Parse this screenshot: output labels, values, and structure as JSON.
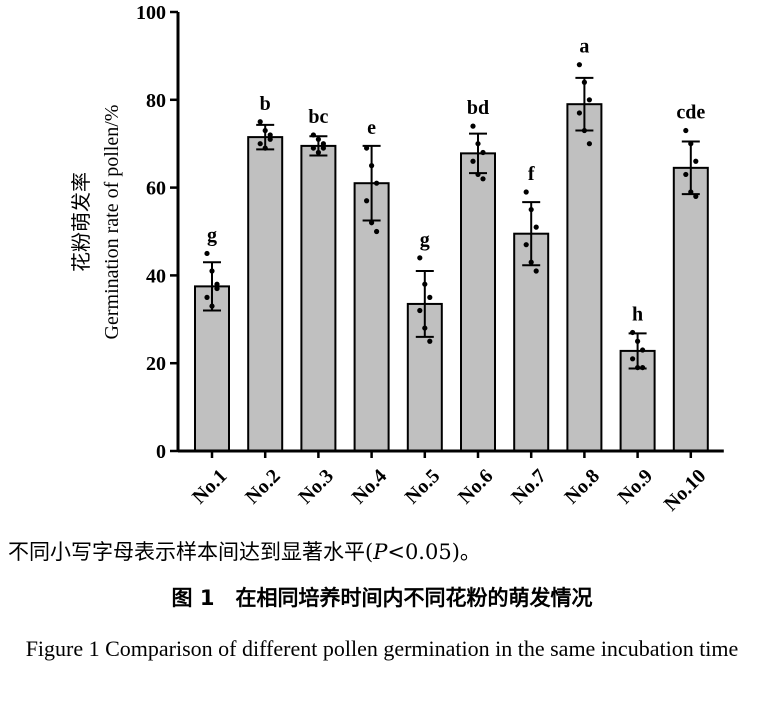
{
  "chart_data": {
    "type": "bar",
    "ylabel_zh": "花粉萌发率",
    "ylabel_en": "Germination rate of pollen/%",
    "ylim": [
      0,
      100
    ],
    "yticks": [
      0,
      20,
      40,
      60,
      80,
      100
    ],
    "categories": [
      "No.1",
      "No.2",
      "No.3",
      "No.4",
      "No.5",
      "No.6",
      "No.7",
      "No.8",
      "No.9",
      "No.10"
    ],
    "values": [
      37.5,
      71.5,
      69.5,
      61.0,
      33.5,
      67.8,
      49.5,
      79.0,
      22.8,
      64.5
    ],
    "errors": [
      5.5,
      2.8,
      2.2,
      8.5,
      7.5,
      4.5,
      7.2,
      6.0,
      4.0,
      6.0
    ],
    "significance_labels": [
      "g",
      "b",
      "bc",
      "e",
      "g",
      "bd",
      "f",
      "a",
      "h",
      "cde"
    ],
    "points": [
      [
        45,
        41,
        38,
        35,
        33,
        37
      ],
      [
        75,
        73,
        72,
        70,
        69,
        71
      ],
      [
        72,
        71,
        70,
        69,
        68,
        69
      ],
      [
        69,
        65,
        61,
        57,
        52,
        50
      ],
      [
        44,
        38,
        35,
        32,
        28,
        25
      ],
      [
        74,
        70,
        68,
        66,
        63,
        62
      ],
      [
        59,
        55,
        51,
        47,
        43,
        41
      ],
      [
        88,
        84,
        80,
        77,
        73,
        70
      ],
      [
        27,
        25,
        23,
        21,
        19,
        19
      ],
      [
        73,
        70,
        66,
        63,
        59,
        58
      ]
    ],
    "bar_color": "#c0c0c0",
    "grid": false
  },
  "note": {
    "prefix": "不同小写字母表示样本间达到显著水平(",
    "p": "P",
    "suffix": "<0.05)。"
  },
  "caption": {
    "zh": "图 1　在相同培养时间内不同花粉的萌发情况",
    "en": "Figure 1    Comparison of different pollen germination in the same incubation time"
  }
}
